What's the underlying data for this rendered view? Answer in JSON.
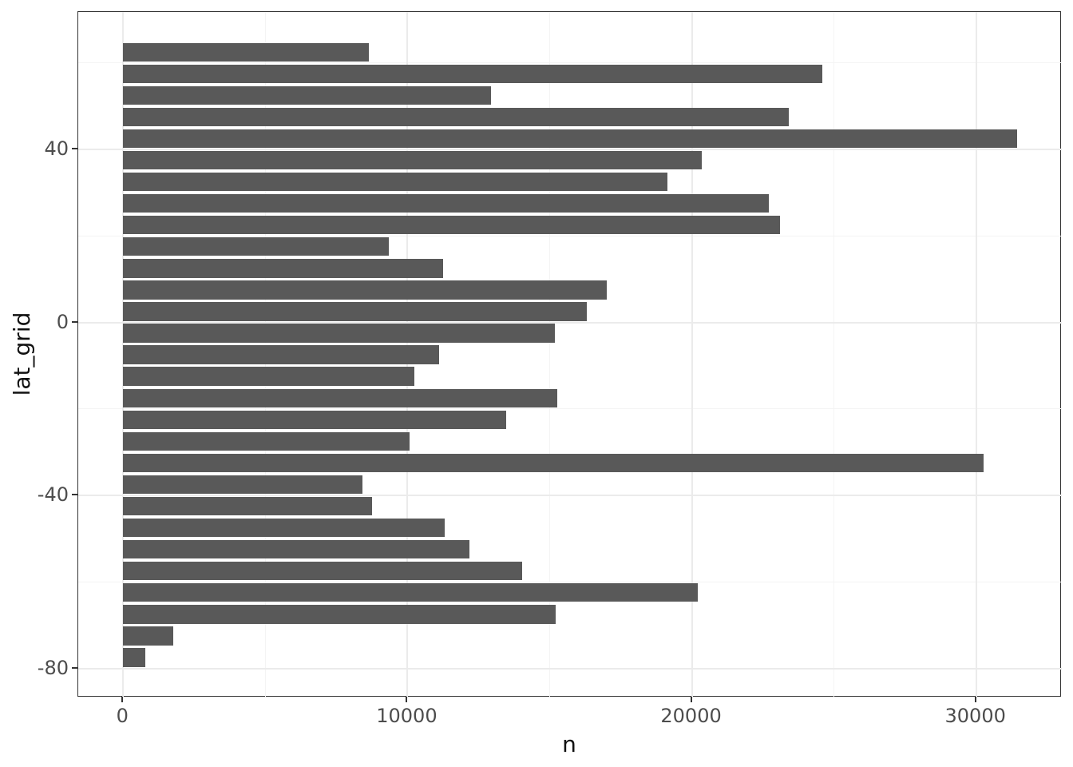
{
  "chart_data": {
    "type": "bar",
    "orientation": "horizontal",
    "title": "",
    "xlabel": "n",
    "ylabel": "lat_grid",
    "bar_color": "#595959",
    "panel_background": "#ffffff",
    "grid_major_color": "#ebebeb",
    "grid_minor_color": "#f4f4f4",
    "panel_border_color": "#333333",
    "axis_text_color": "#4d4d4d",
    "grid": "on",
    "legend": "none",
    "xlim": [
      0,
      31450
    ],
    "ylim": [
      -80,
      62.5
    ],
    "x_major_ticks": [
      0,
      10000,
      20000,
      30000
    ],
    "x_major_tick_labels": [
      "0",
      "10000",
      "20000",
      "30000"
    ],
    "x_minor_ticks": [
      5000,
      15000,
      25000
    ],
    "y_major_ticks": [
      40,
      0,
      -40,
      -80
    ],
    "y_major_tick_labels": [
      "40",
      "0",
      "-40",
      "-80"
    ],
    "y_minor_ticks": [
      60,
      20,
      -20,
      -60
    ],
    "bin_width_degrees": 5,
    "categories": [
      62.5,
      57.5,
      52.5,
      47.5,
      42.5,
      37.5,
      32.5,
      27.5,
      22.5,
      17.5,
      12.5,
      7.5,
      2.5,
      -2.5,
      -7.5,
      -12.5,
      -17.5,
      -22.5,
      -27.5,
      -32.5,
      -37.5,
      -42.5,
      -47.5,
      -52.5,
      -57.5,
      -62.5,
      -67.5,
      -72.5,
      -77.5
    ],
    "values": [
      8650,
      24600,
      12950,
      23400,
      31450,
      20350,
      19150,
      22700,
      23100,
      9350,
      11250,
      17000,
      16300,
      15180,
      11100,
      10250,
      15270,
      13480,
      10070,
      30270,
      8420,
      8760,
      11300,
      12170,
      14040,
      20200,
      15220,
      1760,
      770
    ]
  }
}
